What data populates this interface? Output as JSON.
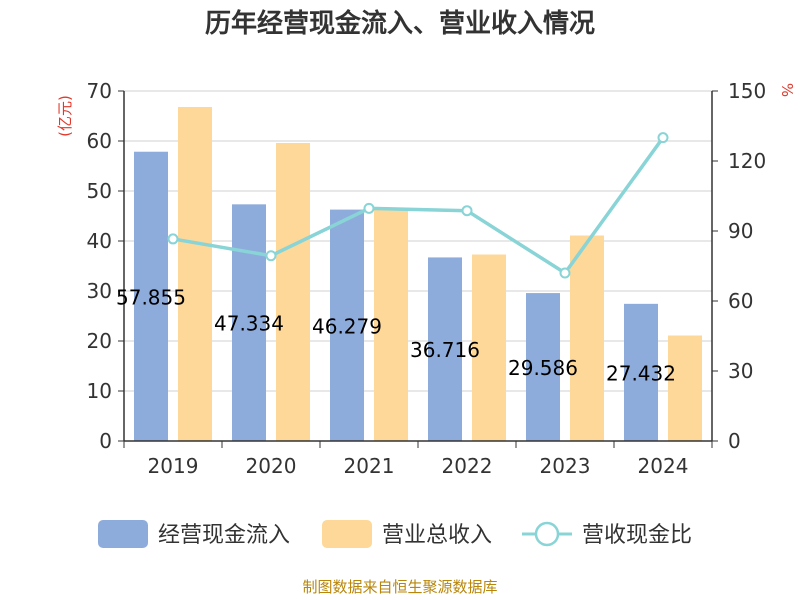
{
  "title": "历年经营现金流入、营业收入情况",
  "left_unit": "(亿元)",
  "right_unit": "%",
  "footer": "制图数据来自恒生聚源数据库",
  "chart_data": {
    "type": "bar",
    "categories": [
      "2019",
      "2020",
      "2021",
      "2022",
      "2023",
      "2024"
    ],
    "series": [
      {
        "name": "经营现金流入",
        "kind": "bar",
        "axis": "left",
        "color": "#8eacdb",
        "values": [
          57.855,
          47.334,
          46.279,
          36.716,
          29.586,
          27.432
        ]
      },
      {
        "name": "营业总收入",
        "kind": "bar",
        "axis": "left",
        "color": "#fdd898",
        "values": [
          66.8,
          59.6,
          46.4,
          37.3,
          41.1,
          21.1
        ]
      },
      {
        "name": "营收现金比",
        "kind": "line",
        "axis": "right",
        "color": "#88d4d6",
        "values": [
          86.6,
          79.4,
          99.7,
          98.7,
          72.0,
          130.0
        ]
      }
    ],
    "data_labels": [
      "57.855",
      "47.334",
      "46.279",
      "36.716",
      "29.586",
      "27.432"
    ],
    "y_left": {
      "ylim": [
        0,
        70
      ],
      "ticks": [
        0,
        10,
        20,
        30,
        40,
        50,
        60,
        70
      ]
    },
    "y_right": {
      "ylim": [
        0,
        150
      ],
      "ticks": [
        0,
        30,
        60,
        90,
        120,
        150
      ]
    },
    "grid": true,
    "legend_position": "bottom"
  }
}
